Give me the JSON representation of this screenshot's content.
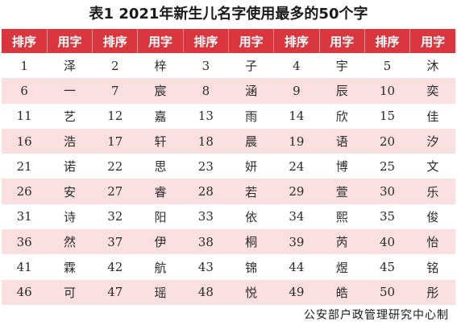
{
  "title": "表1  2021年新生儿名字使用最多的50个字",
  "table": {
    "headers": [
      "排序",
      "用字",
      "排序",
      "用字",
      "排序",
      "用字",
      "排序",
      "用字",
      "排序",
      "用字"
    ],
    "rows": [
      [
        "1",
        "泽",
        "2",
        "梓",
        "3",
        "子",
        "4",
        "宇",
        "5",
        "沐"
      ],
      [
        "6",
        "一",
        "7",
        "宸",
        "8",
        "涵",
        "9",
        "辰",
        "10",
        "奕"
      ],
      [
        "11",
        "艺",
        "12",
        "嘉",
        "13",
        "雨",
        "14",
        "欣",
        "15",
        "佳"
      ],
      [
        "16",
        "浩",
        "17",
        "轩",
        "18",
        "晨",
        "19",
        "语",
        "20",
        "汐"
      ],
      [
        "21",
        "诺",
        "22",
        "思",
        "23",
        "妍",
        "24",
        "博",
        "25",
        "文"
      ],
      [
        "26",
        "安",
        "27",
        "睿",
        "28",
        "若",
        "29",
        "萱",
        "30",
        "乐"
      ],
      [
        "31",
        "诗",
        "32",
        "阳",
        "33",
        "依",
        "34",
        "熙",
        "35",
        "俊"
      ],
      [
        "36",
        "然",
        "37",
        "伊",
        "38",
        "桐",
        "39",
        "芮",
        "40",
        "怡"
      ],
      [
        "41",
        "霖",
        "42",
        "航",
        "43",
        "锦",
        "44",
        "煜",
        "45",
        "铭"
      ],
      [
        "46",
        "可",
        "47",
        "瑶",
        "48",
        "悦",
        "49",
        "皓",
        "50",
        "彤"
      ]
    ]
  },
  "footer": "公安部户政管理研究中心制",
  "colors": {
    "header_bg": "#d9363e",
    "stripe_bg": "#f9dfe0"
  }
}
